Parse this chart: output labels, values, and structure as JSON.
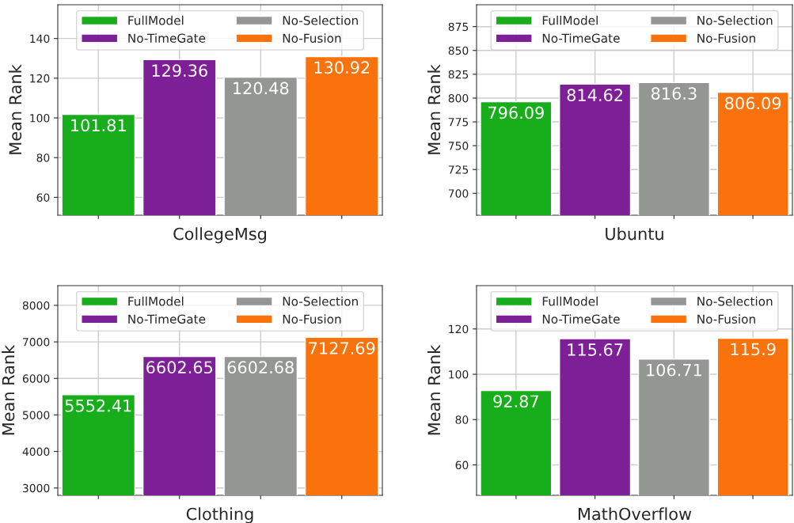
{
  "chart_data": [
    {
      "type": "bar",
      "xlabel": "CollegeMsg",
      "ylabel": "Mean Rank",
      "categories": [
        null,
        null,
        null,
        null
      ],
      "series": [
        {
          "name": "FullModel",
          "color": "#18ad1b",
          "values": [
            101.81,
            null,
            null,
            null
          ]
        },
        {
          "name": "No-TimeGate",
          "color": "#7d1f97",
          "values": [
            null,
            129.36,
            null,
            null
          ]
        },
        {
          "name": "No-Selection",
          "color": "#949694",
          "values": [
            null,
            null,
            120.48,
            null
          ]
        },
        {
          "name": "No-Fusion",
          "color": "#f9720b",
          "values": [
            null,
            null,
            null,
            130.92
          ]
        }
      ],
      "ylim": [
        51,
        157
      ],
      "yticks": [
        60,
        80,
        100,
        120,
        140
      ],
      "grid": true,
      "legend": "top",
      "data_labels": true
    },
    {
      "type": "bar",
      "xlabel": "Ubuntu",
      "ylabel": "Mean Rank",
      "categories": [
        null,
        null,
        null,
        null
      ],
      "series": [
        {
          "name": "FullModel",
          "color": "#18ad1b",
          "values": [
            796.09,
            null,
            null,
            null
          ]
        },
        {
          "name": "No-TimeGate",
          "color": "#7d1f97",
          "values": [
            null,
            814.62,
            null,
            null
          ]
        },
        {
          "name": "No-Selection",
          "color": "#949694",
          "values": [
            null,
            null,
            816.3,
            null
          ]
        },
        {
          "name": "No-Fusion",
          "color": "#f9720b",
          "values": [
            null,
            null,
            null,
            806.09
          ]
        }
      ],
      "ylim": [
        677,
        898
      ],
      "yticks": [
        700,
        725,
        750,
        775,
        800,
        825,
        850,
        875
      ],
      "grid": true,
      "legend": "top",
      "data_labels": true
    },
    {
      "type": "bar",
      "xlabel": "Clothing",
      "ylabel": "Mean Rank",
      "categories": [
        null,
        null,
        null,
        null
      ],
      "series": [
        {
          "name": "FullModel",
          "color": "#18ad1b",
          "values": [
            5552.41,
            null,
            null,
            null
          ]
        },
        {
          "name": "No-TimeGate",
          "color": "#7d1f97",
          "values": [
            null,
            6602.65,
            null,
            null
          ]
        },
        {
          "name": "No-Selection",
          "color": "#949694",
          "values": [
            null,
            null,
            6602.68,
            null
          ]
        },
        {
          "name": "No-Fusion",
          "color": "#f9720b",
          "values": [
            null,
            null,
            null,
            7127.69
          ]
        }
      ],
      "ylim": [
        2800,
        8540
      ],
      "yticks": [
        3000,
        4000,
        5000,
        6000,
        7000,
        8000
      ],
      "grid": true,
      "legend": "top",
      "data_labels": true
    },
    {
      "type": "bar",
      "xlabel": "MathOverflow",
      "ylabel": "Mean Rank",
      "categories": [
        null,
        null,
        null,
        null
      ],
      "series": [
        {
          "name": "FullModel",
          "color": "#18ad1b",
          "values": [
            92.87,
            null,
            null,
            null
          ]
        },
        {
          "name": "No-TimeGate",
          "color": "#7d1f97",
          "values": [
            null,
            115.67,
            null,
            null
          ]
        },
        {
          "name": "No-Selection",
          "color": "#949694",
          "values": [
            null,
            null,
            106.71,
            null
          ]
        },
        {
          "name": "No-Fusion",
          "color": "#f9720b",
          "values": [
            null,
            null,
            null,
            115.9
          ]
        }
      ],
      "ylim": [
        46.6,
        139.1
      ],
      "yticks": [
        60,
        80,
        100,
        120
      ],
      "grid": true,
      "legend": "top",
      "data_labels": true
    }
  ]
}
